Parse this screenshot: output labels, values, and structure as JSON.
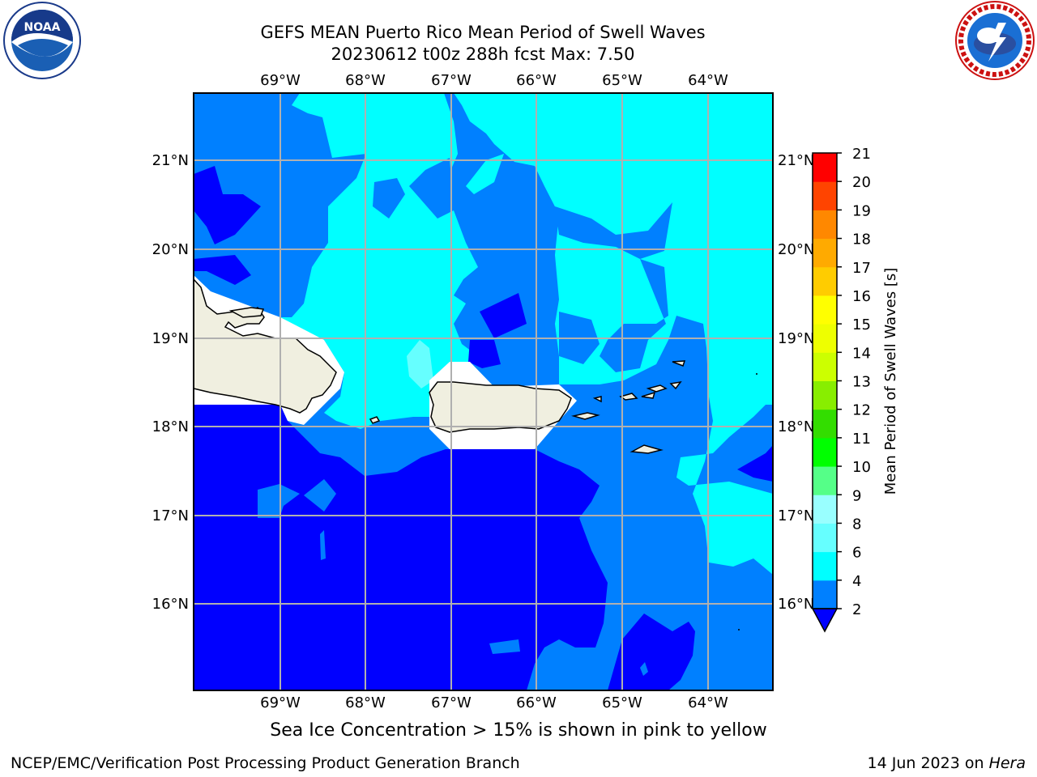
{
  "header": {
    "title_line1": "GEFS MEAN Puerto Rico Mean Period of Swell Waves",
    "title_line2": "20230612 t00z 288h fcst   Max: 7.50"
  },
  "logos": {
    "left": {
      "icon": "noaa-logo-icon",
      "text": "NOAA"
    },
    "right": {
      "icon": "nws-logo-icon"
    }
  },
  "map": {
    "lon_labels": [
      "69°W",
      "68°W",
      "67°W",
      "66°W",
      "65°W",
      "64°W"
    ],
    "lat_labels": [
      "21°N",
      "20°N",
      "19°N",
      "18°N",
      "17°N",
      "16°N"
    ],
    "colors": {
      "band_2_4": "#0044ff",
      "band_4_6": "#0080ff",
      "band_6_8": "#00ffff",
      "band_8_10": "#66ffff",
      "land": "#f0efe0",
      "no_data": "#ffffff",
      "grid": "#b0b0b0"
    }
  },
  "colorbar": {
    "label": "Mean Period of Swell Waves [s]",
    "ticks": [
      "2",
      "4",
      "6",
      "8",
      "9",
      "10",
      "11",
      "12",
      "13",
      "14",
      "15",
      "16",
      "17",
      "18",
      "19",
      "20",
      "21"
    ],
    "colors": [
      "#0000ff",
      "#0080ff",
      "#00ffff",
      "#66ffff",
      "#99ffff",
      "#55ff88",
      "#00ff00",
      "#33dd00",
      "#88ee00",
      "#ccff00",
      "#eeff00",
      "#ffff00",
      "#ffcc00",
      "#ffaa00",
      "#ff8800",
      "#ff4400",
      "#ff0000"
    ]
  },
  "notes": {
    "ice": "Sea Ice Concentration > 15% is shown in pink to yellow"
  },
  "footer": {
    "left": "NCEP/EMC/Verification Post Processing Product Generation Branch",
    "date": "14 Jun 2023 on ",
    "machine": "Hera"
  }
}
